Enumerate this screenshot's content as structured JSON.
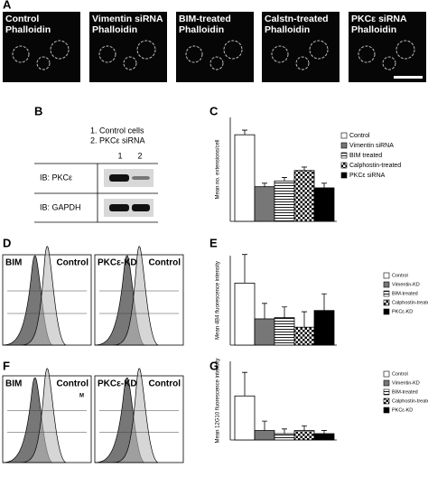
{
  "figure": {
    "panel_labels": [
      "A",
      "B",
      "C",
      "D",
      "E",
      "F",
      "G"
    ],
    "panel_a": [
      {
        "lines": [
          "Control",
          "Phalloidin"
        ]
      },
      {
        "lines": [
          "Vimentin siRNA",
          "Phalloidin"
        ]
      },
      {
        "lines": [
          "BIM-treated",
          "Phalloidin"
        ]
      },
      {
        "lines": [
          "Calstn-treated",
          "Phalloidin"
        ]
      },
      {
        "lines": [
          "PKCε siRNA",
          "Phalloidin"
        ]
      }
    ],
    "panel_b": {
      "legend": [
        "1. Control cells",
        "2. PKCε siRNA"
      ],
      "lanes": [
        "1",
        "2"
      ],
      "rows": [
        "IB: PKCε",
        "IB: GAPDH"
      ]
    },
    "panel_d": [
      "BIM",
      "Control",
      "PKCε-KD",
      "Control"
    ],
    "panel_f": [
      "BIM",
      "Control",
      "PKCε-KD",
      "Control",
      "M"
    ]
  },
  "chart_data": [
    {
      "type": "bar",
      "y_label": "Mean no. extensions/cell",
      "ylim": [
        0,
        9
      ],
      "series": [
        {
          "name": "Control",
          "fill": "white",
          "values": [
            7.5
          ],
          "errors": [
            0.4
          ]
        },
        {
          "name": "Vimentin siRNA",
          "fill": "gray",
          "values": [
            3.0
          ],
          "errors": [
            0.3
          ]
        },
        {
          "name": "BIM treated",
          "fill": "stripes",
          "values": [
            3.5
          ],
          "errors": [
            0.3
          ]
        },
        {
          "name": "Calphostin-treated",
          "fill": "checker",
          "values": [
            4.4
          ],
          "errors": [
            0.3
          ]
        },
        {
          "name": "PKCε siRNA",
          "fill": "black",
          "values": [
            2.9
          ],
          "errors": [
            0.4
          ]
        }
      ]
    },
    {
      "type": "bar",
      "y_label": "Mean 4B4 fluorescence intensity",
      "ylim": [
        0,
        7.5
      ],
      "series": [
        {
          "name": "Control",
          "fill": "white",
          "values": [
            5.2
          ],
          "errors": [
            2.4
          ]
        },
        {
          "name": "Vimentin-KD",
          "fill": "gray",
          "values": [
            2.2
          ],
          "errors": [
            1.3
          ]
        },
        {
          "name": "BIM-treated",
          "fill": "stripes",
          "values": [
            2.3
          ],
          "errors": [
            0.9
          ]
        },
        {
          "name": "Calphostin-treatec",
          "fill": "checker",
          "values": [
            1.5
          ],
          "errors": [
            1.3
          ]
        },
        {
          "name": "PKCε-KD",
          "fill": "black",
          "values": [
            2.9
          ],
          "errors": [
            1.4
          ]
        }
      ]
    },
    {
      "type": "bar",
      "y_label": "Mean 12G10 fluorescence intensity",
      "ylim": [
        0,
        5
      ],
      "series": [
        {
          "name": "Control",
          "fill": "white",
          "values": [
            2.8
          ],
          "errors": [
            1.5
          ]
        },
        {
          "name": "Vimentin-KD",
          "fill": "gray",
          "values": [
            0.6
          ],
          "errors": [
            0.6
          ]
        },
        {
          "name": "BIM-treated",
          "fill": "stripes",
          "values": [
            0.4
          ],
          "errors": [
            0.3
          ]
        },
        {
          "name": "Calphostin-treatec",
          "fill": "checker",
          "values": [
            0.6
          ],
          "errors": [
            0.3
          ]
        },
        {
          "name": "PKCε-KD",
          "fill": "black",
          "values": [
            0.4
          ],
          "errors": [
            0.2
          ]
        }
      ]
    }
  ]
}
